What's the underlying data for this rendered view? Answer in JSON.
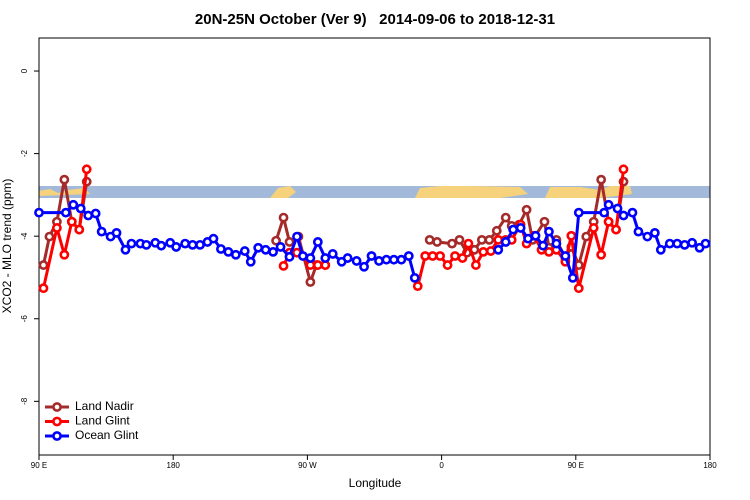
{
  "chart_data": {
    "type": "line",
    "title": "20N-25N October (Ver 9)   2014-09-06 to 2018-12-31",
    "x_label": "Longitude",
    "y_label": "XCO2 - MLO trend (ppm)",
    "xlim": [
      90,
      540
    ],
    "xticks": [
      {
        "value": 90,
        "label": "90 E"
      },
      180,
      {
        "value": 270,
        "label": "90 W"
      },
      {
        "value": 360,
        "label": "0"
      },
      {
        "value": 450,
        "label": "90 E"
      },
      {
        "value": 540,
        "label": "180"
      }
    ],
    "ylim": [
      -9.3,
      0.8
    ],
    "yticks": [
      0,
      -2,
      -4,
      -6,
      -8
    ],
    "legend": "bottom-left",
    "series": [
      {
        "name": "Land Nadir",
        "color": "#a52a2a",
        "x": [
          93,
          97,
          102,
          107,
          112,
          117,
          122,
          null,
          249,
          254,
          258,
          264,
          272,
          276,
          282,
          null,
          352,
          357,
          367,
          372,
          377,
          382,
          387,
          392,
          397,
          403,
          407,
          412,
          417,
          421,
          429,
          432,
          437,
          443,
          447,
          452,
          457,
          462,
          467,
          472,
          477,
          482
        ],
        "values": [
          -4.7,
          -4.01,
          -3.65,
          -2.63,
          -3.65,
          -3.84,
          -2.68,
          null,
          -4.11,
          -3.55,
          -4.14,
          -4.01,
          -5.11,
          -4.7,
          -4.7,
          null,
          -4.09,
          -4.14,
          -4.18,
          -4.09,
          -4.4,
          -4.33,
          -4.09,
          -4.09,
          -3.87,
          -3.55,
          -3.75,
          -3.72,
          -3.36,
          -4.09,
          -3.65,
          -4.28,
          -4.09,
          -4.53,
          -4.26,
          -4.7,
          -4.01,
          -3.65,
          -2.63,
          -3.65,
          -3.84,
          -2.68
        ]
      },
      {
        "name": "Land Glint",
        "color": "#ff0000",
        "x": [
          93,
          102,
          107,
          112,
          117,
          122,
          null,
          254,
          258,
          263,
          272,
          277,
          282,
          null,
          344,
          349,
          354,
          359,
          364,
          369,
          374,
          378,
          383,
          388,
          393,
          398,
          403,
          407,
          413,
          417,
          422,
          427,
          432,
          437,
          443,
          447,
          452,
          462,
          467,
          472,
          477,
          482
        ],
        "values": [
          -5.26,
          -3.8,
          -4.45,
          -3.65,
          -3.84,
          -2.38,
          null,
          -4.72,
          -4.4,
          -4.4,
          -4.7,
          -4.7,
          -4.7,
          null,
          -5.21,
          -4.48,
          -4.48,
          -4.48,
          -4.7,
          -4.48,
          -4.53,
          -4.18,
          -4.7,
          -4.38,
          -4.36,
          -4.09,
          -4.09,
          -4.09,
          -3.72,
          -4.18,
          -3.99,
          -4.33,
          -4.38,
          -4.33,
          -4.62,
          -3.99,
          -5.26,
          -3.8,
          -4.45,
          -3.65,
          -3.84,
          -2.38
        ]
      },
      {
        "name": "Ocean Glint",
        "color": "#0000ff",
        "x": [
          90,
          108,
          113,
          118,
          123,
          128,
          132,
          138,
          142,
          148,
          152,
          158,
          162,
          168,
          172,
          178,
          182,
          188,
          193,
          198,
          203,
          207,
          212,
          217,
          222,
          228,
          232,
          237,
          242,
          247,
          252,
          258,
          263,
          267,
          272,
          277,
          282,
          287,
          293,
          297,
          303,
          308,
          313,
          318,
          323,
          328,
          333,
          338,
          342,
          null,
          398,
          403,
          408,
          413,
          418,
          423,
          428,
          432,
          437,
          443,
          448,
          452,
          469,
          472,
          478,
          482,
          488,
          492,
          498,
          503,
          507,
          513,
          518,
          523,
          528,
          533,
          537
        ],
        "values": [
          -3.43,
          -3.43,
          -3.24,
          -3.33,
          -3.5,
          -3.45,
          -3.89,
          -4.01,
          -3.92,
          -4.33,
          -4.18,
          -4.18,
          -4.21,
          -4.16,
          -4.23,
          -4.16,
          -4.26,
          -4.18,
          -4.21,
          -4.21,
          -4.14,
          -4.06,
          -4.31,
          -4.38,
          -4.45,
          -4.36,
          -4.62,
          -4.28,
          -4.33,
          -4.38,
          -4.26,
          -4.5,
          -4.01,
          -4.48,
          -4.53,
          -4.14,
          -4.53,
          -4.43,
          -4.62,
          -4.53,
          -4.6,
          -4.74,
          -4.48,
          -4.6,
          -4.57,
          -4.57,
          -4.57,
          -4.48,
          -5.01,
          null,
          -4.33,
          -4.14,
          -3.84,
          -3.8,
          -4.06,
          -3.99,
          -4.23,
          -3.89,
          -4.18,
          -4.48,
          -5.01,
          -3.43,
          -3.43,
          -3.24,
          -3.33,
          -3.5,
          -3.43,
          -3.89,
          -4.01,
          -3.92,
          -4.33,
          -4.18,
          -4.18,
          -4.21,
          -4.16,
          -4.28,
          -4.18
        ]
      }
    ]
  }
}
